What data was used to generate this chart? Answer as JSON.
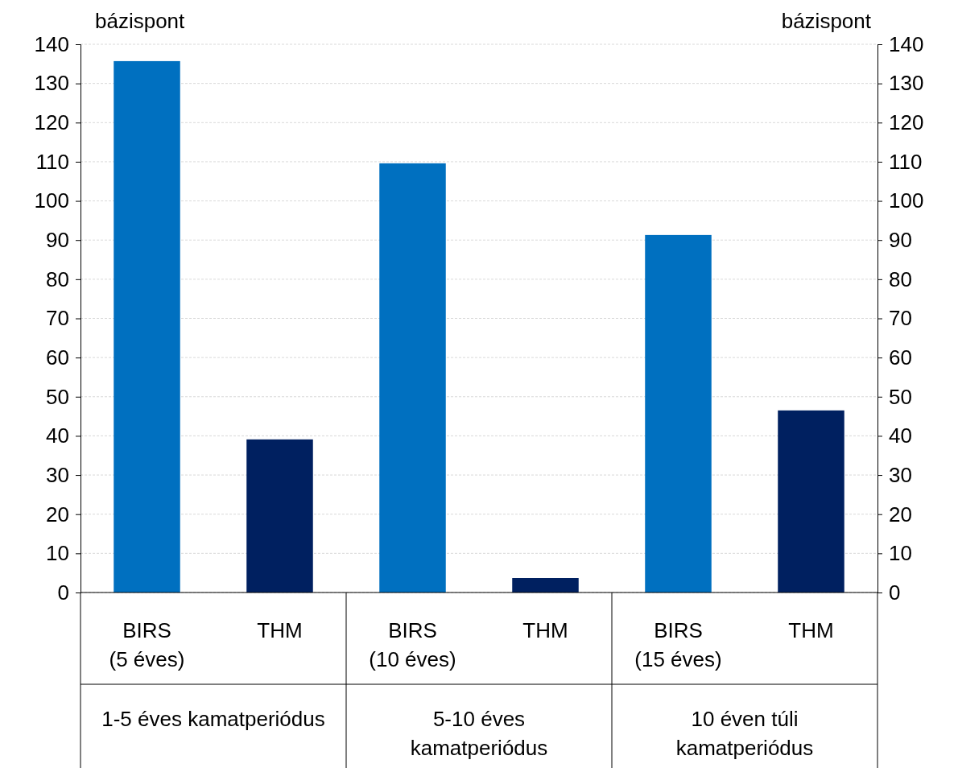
{
  "chart_data": {
    "type": "bar",
    "ylabel": "bázispont",
    "y2label": "bázispont",
    "categories": [
      "BIRS (5 éves)",
      "THM",
      "BIRS (10 éves)",
      "THM",
      "BIRS (15 éves)",
      "THM"
    ],
    "values": [
      135.7,
      39.1,
      109.6,
      3.7,
      91.3,
      46.5
    ],
    "colors": [
      "#0070c0",
      "#002060",
      "#0070c0",
      "#002060",
      "#0070c0",
      "#002060"
    ],
    "ylim": [
      0,
      140
    ],
    "yticks": [
      0,
      10,
      20,
      30,
      40,
      50,
      60,
      70,
      80,
      90,
      100,
      110,
      120,
      130,
      140
    ],
    "y2lim": [
      0,
      140
    ],
    "y2ticks": [
      0,
      10,
      20,
      30,
      40,
      50,
      60,
      70,
      80,
      90,
      100,
      110,
      120,
      130,
      140
    ],
    "grid": "y",
    "annotations": [
      "1-5 éves kamatperiódus",
      "5-10 éves kamatperiódus",
      "10 éven túli kamatperiódus"
    ]
  }
}
